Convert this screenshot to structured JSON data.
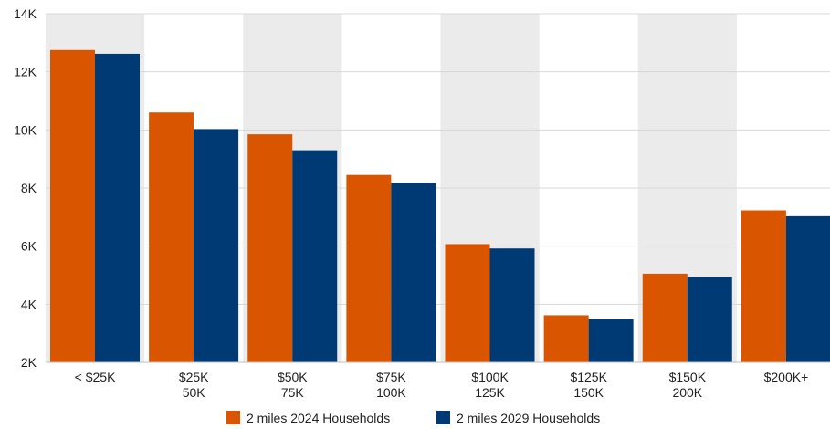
{
  "chart_data": {
    "type": "bar",
    "categories": [
      [
        "< $25K"
      ],
      [
        "$25K",
        "50K"
      ],
      [
        "$50K",
        "75K"
      ],
      [
        "$75K",
        "100K"
      ],
      [
        "$100K",
        "125K"
      ],
      [
        "$125K",
        "150K"
      ],
      [
        "$150K",
        "200K"
      ],
      [
        "$200K+"
      ]
    ],
    "series": [
      {
        "name": "2 miles 2024 Households",
        "color": "#d95500",
        "values": [
          12750,
          10600,
          9850,
          8450,
          6070,
          3620,
          5050,
          7230
        ]
      },
      {
        "name": "2 miles 2029 Households",
        "color": "#003a75",
        "values": [
          12620,
          10030,
          9300,
          8170,
          5920,
          3480,
          4930,
          7030
        ]
      }
    ],
    "y_ticks": [
      "2K",
      "4K",
      "6K",
      "8K",
      "10K",
      "12K",
      "14K"
    ],
    "y_tick_values": [
      2000,
      4000,
      6000,
      8000,
      10000,
      12000,
      14000
    ],
    "ylim": [
      2000,
      14000
    ],
    "title": "",
    "xlabel": "",
    "ylabel": "",
    "legend_position": "bottom",
    "grid": true,
    "band_color": "#ebebeb"
  }
}
